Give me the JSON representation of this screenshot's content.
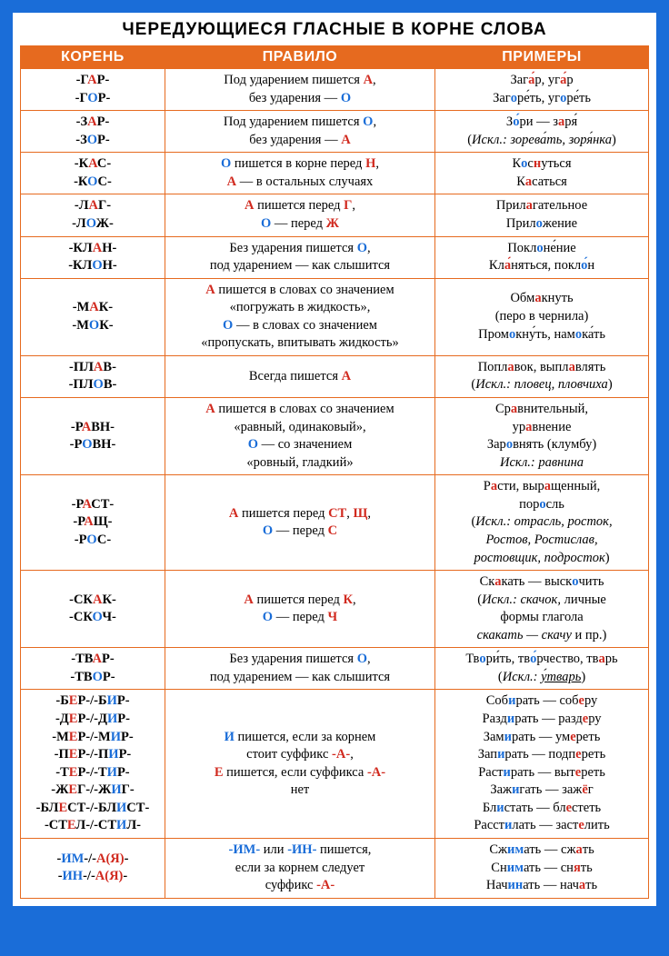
{
  "title": "ЧЕРЕДУЮЩИЕСЯ ГЛАСНЫЕ В КОРНЕ СЛОВА",
  "headers": {
    "root": "КОРЕНЬ",
    "rule": "ПРАВИЛО",
    "ex": "ПРИМЕРЫ"
  },
  "colors": {
    "accent_bg": "#e66a1f",
    "border": "#e66a1f",
    "red": "#d12a1f",
    "blue": "#1a6dd8",
    "page_bg": "#ffffff",
    "outer_bg": "#1a6dd8"
  },
  "rows": [
    {
      "root": "-Г<r>А</r>Р-<br>-Г<b>О</b>Р-",
      "rule": "Под ударением пишется <r>А</r>,<br>без ударения — <b>О</b>",
      "ex": "Заг<r>а́</r>р, уг<r>а́</r>р<br>Заг<b>о</b>ре́ть, уг<b>о</b>ре́ть"
    },
    {
      "root": "-З<r>А</r>Р-<br>-З<b>О</b>Р-",
      "rule": "Под ударением пишется <b>О</b>,<br>без ударения — <r>А</r>",
      "ex": "З<b>о́</b>ри — з<r>а</r>ря́<br>(<i>Искл.: зорева́ть, зоря́нка</i>)"
    },
    {
      "root": "-К<r>А</r>С-<br>-К<b>О</b>С-",
      "rule": "<b>О</b> пишется в корне перед <r>Н</r>,<br><r>А</r> — в остальных случаях",
      "ex": "К<b>о</b>с<r>н</r>уться<br>К<r>а</r>саться"
    },
    {
      "root": "-Л<r>А</r>Г-<br>-Л<b>О</b>Ж-",
      "rule": "<r>А</r> пишется перед <r>Г</r>,<br><b>О</b> — перед <r>Ж</r>",
      "ex": "Прил<r>а</r>гательное<br>Прил<b>о</b>жение"
    },
    {
      "root": "-КЛ<r>А</r>Н-<br>-КЛ<b>О</b>Н-",
      "rule": "Без ударения пишется <b>О</b>,<br>под ударением — как слышится",
      "ex": "Покл<b>о</b>не́ние<br>Кл<r>а́</r>няться, покл<b>о́</b>н"
    },
    {
      "root": "-М<r>А</r>К-<br>-М<b>О</b>К-",
      "rule": "<r>А</r> пишется в словах со значением<br>«погружать в жидкость»,<br><b>О</b> — в словах со значением<br>«пропускать, впитывать жидкость»",
      "ex": "Обм<r>а</r>кнуть<br>(перо в чернила)<br>Пром<b>о</b>кну́ть, нам<b>о</b>ка́ть"
    },
    {
      "root": "-ПЛ<r>А</r>В-<br>-ПЛ<b>О</b>В-",
      "rule": "Всегда пишется <r>А</r>",
      "ex": "Попл<r>а</r>вок, выпл<r>а</r>влять<br>(<i>Искл.: пловец, пловчиха</i>)"
    },
    {
      "root": "-Р<r>А</r>ВН-<br>-Р<b>О</b>ВН-",
      "rule": "<r>А</r> пишется в словах со значением<br>«равный, одинаковый»,<br><b>О</b> — со значением<br>«ровный, гладкий»",
      "ex": "Ср<r>а</r>внительный,<br>ур<r>а</r>внение<br>Зар<b>о</b>внять (клумбу)<br><i>Искл.: равнина</i>"
    },
    {
      "root": "-Р<r>А</r>СТ-<br>-Р<r>А</r>Щ-<br>-Р<b>О</b>С-",
      "rule": "<r>А</r> пишется перед <r>СТ</r>, <r>Щ</r>,<br><b>О</b> — перед <r>С</r>",
      "ex": "Р<r>а</r>сти, выр<r>а</r>щенный,<br>пор<b>о</b>сль<br>(<i>Искл.: отрасль, росток,<br>Ростов, Ростислав,<br>ростовщик, подросток</i>)"
    },
    {
      "root": "-СК<r>А</r>К-<br>-СК<b>О</b>Ч-",
      "rule": "<r>А</r> пишется перед <r>К</r>,<br><b>О</b> — перед <r>Ч</r>",
      "ex": "Ск<r>а</r>кать — выск<b>о</b>чить<br>(<i>Искл.: скачок,</i> личные<br>формы глагола<br><i>скакать — скачу</i> и пр.)"
    },
    {
      "root": "-ТВ<r>А</r>Р-<br>-ТВ<b>О</b>Р-",
      "rule": "Без ударения пишется <b>О</b>,<br>под ударением — как слышится",
      "ex": "Тв<b>о</b>ри́ть, тв<b>о́</b>рчество, тв<r>а</r>рь<br>(<i>Искл.: <u>у́тварь</u></i>)"
    },
    {
      "root": "-Б<r>Е</r>Р-/-Б<b>И</b>Р-<br>-Д<r>Е</r>Р-/-Д<b>И</b>Р-<br>-М<r>Е</r>Р-/-М<b>И</b>Р-<br>-П<r>Е</r>Р-/-П<b>И</b>Р-<br>-Т<r>Е</r>Р-/-Т<b>И</b>Р-<br>-Ж<r>Е</r>Г-/-Ж<b>И</b>Г-<br>-БЛ<r>Е</r>СТ-/-БЛ<b>И</b>СТ-<br>-СТ<r>Е</r>Л-/-СТ<b>И</b>Л-",
      "rule": "<b>И</b> пишется, если за корнем<br>стоит суффикс <r>-А-</r>,<br><r>Е</r> пишется, если суффикса <r>-А-</r><br>нет",
      "ex": "Соб<b>и</b>рать — соб<r>е</r>ру<br>Разд<b>и</b>рать — разд<r>е</r>ру<br>Зам<b>и</b>рать — ум<r>е</r>реть<br>Зап<b>и</b>рать — подп<r>е</r>реть<br>Раст<b>и</b>рать — выт<r>е</r>реть<br>Заж<b>и</b>гать — заж<r>ё</r>г<br>Бл<b>и</b>стать — бл<r>е</r>стеть<br>Расст<b>и</b>лать — заст<r>е</r>лить"
    },
    {
      "root": "-<b>ИМ</b>-/-<r>А(Я)</r>-<br>-<b>ИН</b>-/-<r>А(Я)</r>-",
      "rule": "<b>-ИМ-</b> или <b>-ИН-</b> пишется,<br>если за корнем следует<br>суффикс <r>-А-</r>",
      "ex": "Сж<b>им</b>ать — сж<r>а</r>ть<br>Сн<b>им</b>ать — сн<r>я</r>ть<br>Нач<b>ин</b>ать — нач<r>а</r>ть"
    }
  ]
}
